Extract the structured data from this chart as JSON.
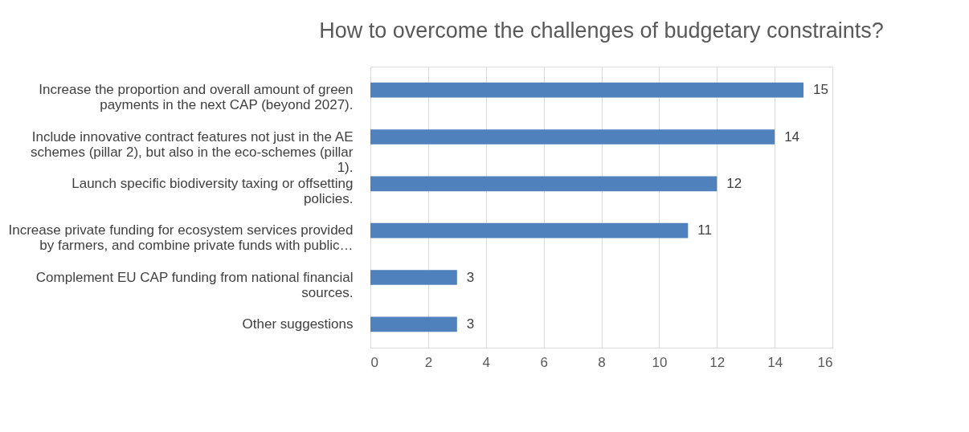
{
  "chart_data": {
    "type": "bar",
    "orientation": "horizontal",
    "title": "How to overcome the challenges of budgetary constraints?",
    "categories": [
      "Increase the proportion and overall amount of green payments in the next CAP (beyond 2027).",
      "Include innovative contract features not just in the AE schemes (pillar 2), but also in the eco-schemes (pillar 1).",
      "Launch specific biodiversity taxing or offsetting policies.",
      "Increase private funding for ecosystem services provided by farmers, and combine private funds with public…",
      "Complement EU CAP funding from national financial sources.",
      "Other suggestions"
    ],
    "values": [
      15,
      14,
      12,
      11,
      3,
      3
    ],
    "color": "#4f81bd",
    "xlim": [
      0,
      16
    ],
    "xticks": [
      0,
      2,
      4,
      6,
      8,
      10,
      12,
      14,
      16
    ],
    "grid": "x",
    "data_labels": true
  }
}
